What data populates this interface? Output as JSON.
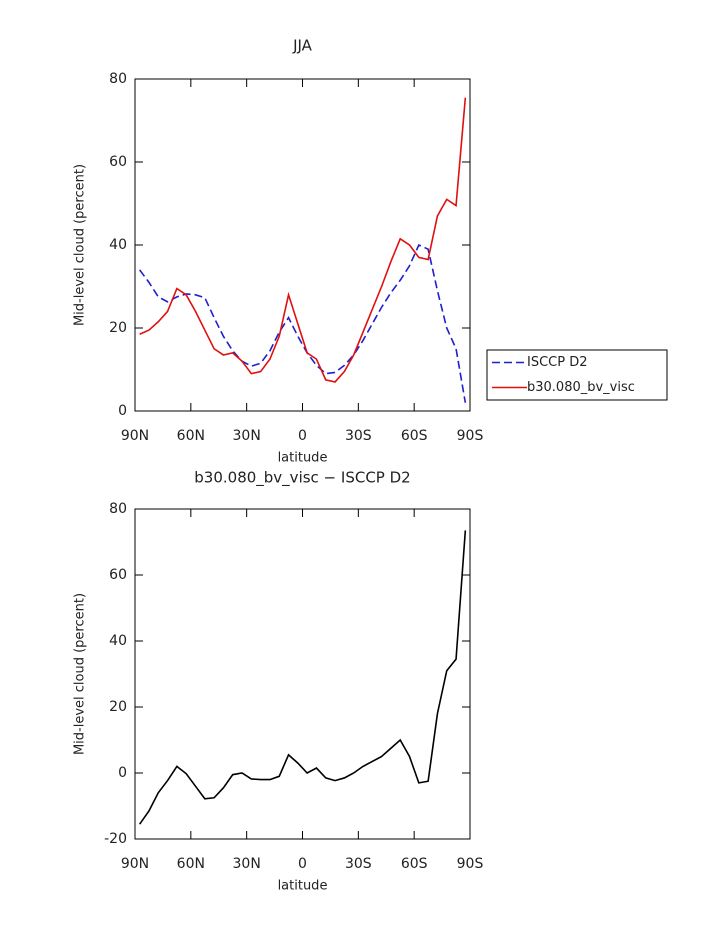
{
  "chart_data": [
    {
      "type": "line",
      "title": "JJA",
      "x_label": "latitude",
      "y_label": "Mid-level cloud (percent)",
      "x": [
        87.5,
        82.5,
        77.5,
        72.5,
        67.5,
        62.5,
        57.5,
        52.5,
        47.5,
        42.5,
        37.5,
        32.5,
        27.5,
        22.5,
        17.5,
        12.5,
        7.5,
        2.5,
        -2.5,
        -7.5,
        -12.5,
        -17.5,
        -22.5,
        -27.5,
        -32.5,
        -37.5,
        -42.5,
        -47.5,
        -52.5,
        -57.5,
        -62.5,
        -67.5,
        -72.5,
        -77.5,
        -82.5,
        -87.5
      ],
      "series": [
        {
          "name": "ISCCP D2",
          "color": "#1f1fd0",
          "dashed": true,
          "values": [
            34,
            31,
            27.5,
            26.3,
            27.5,
            28.2,
            28,
            27.3,
            22.5,
            18,
            14.5,
            12,
            10.8,
            11.5,
            14.5,
            19,
            22.5,
            18,
            14,
            11,
            9,
            9.3,
            11,
            13.5,
            17,
            21,
            25,
            28.5,
            31.5,
            35,
            40,
            39,
            29,
            20,
            15,
            2
          ]
        },
        {
          "name": "b30.080_bv_visc",
          "color": "#e01010",
          "dashed": false,
          "values": [
            18.5,
            19.5,
            21.5,
            24,
            29.5,
            28,
            24,
            19.5,
            15,
            13.5,
            14,
            12,
            9,
            9.5,
            12.5,
            18,
            28,
            21,
            14,
            12.5,
            7.5,
            7,
            9.5,
            13.5,
            19,
            24.5,
            30,
            36,
            41.5,
            40,
            37,
            36.5,
            47,
            51,
            49.5,
            75.5
          ]
        }
      ],
      "xlim": [
        90,
        -90
      ],
      "xticks": [
        {
          "value": 90,
          "label": "90N"
        },
        {
          "value": 60,
          "label": "60N"
        },
        {
          "value": 30,
          "label": "30N"
        },
        0,
        {
          "value": -30,
          "label": "30S"
        },
        {
          "value": -60,
          "label": "60S"
        },
        {
          "value": -90,
          "label": "90S"
        }
      ],
      "ylim": [
        0,
        80
      ],
      "yticks": [
        0,
        20,
        40,
        60,
        80
      ],
      "legend": "outside-right"
    },
    {
      "type": "line",
      "title": "b30.080_bv_visc − ISCCP D2",
      "x_label": "latitude",
      "y_label": "Mid-level cloud (percent)",
      "x": [
        87.5,
        82.5,
        77.5,
        72.5,
        67.5,
        62.5,
        57.5,
        52.5,
        47.5,
        42.5,
        37.5,
        32.5,
        27.5,
        22.5,
        17.5,
        12.5,
        7.5,
        2.5,
        -2.5,
        -7.5,
        -12.5,
        -17.5,
        -22.5,
        -27.5,
        -32.5,
        -37.5,
        -42.5,
        -47.5,
        -52.5,
        -57.5,
        -62.5,
        -67.5,
        -72.5,
        -77.5,
        -82.5,
        -87.5
      ],
      "series": [
        {
          "color": "#000000",
          "dashed": false,
          "values": [
            -15.5,
            -11.5,
            -6,
            -2.3,
            2,
            -0.2,
            -4,
            -7.8,
            -7.5,
            -4.5,
            -0.5,
            0,
            -1.8,
            -2,
            -2,
            -1,
            5.5,
            3,
            0,
            1.5,
            -1.5,
            -2.3,
            -1.5,
            0,
            2,
            3.5,
            5,
            7.5,
            10,
            5,
            -3,
            -2.5,
            18,
            31,
            34.5,
            73.5
          ]
        }
      ],
      "xlim": [
        90,
        -90
      ],
      "xticks": [
        {
          "value": 90,
          "label": "90N"
        },
        {
          "value": 60,
          "label": "60N"
        },
        {
          "value": 30,
          "label": "30N"
        },
        0,
        {
          "value": -30,
          "label": "30S"
        },
        {
          "value": -60,
          "label": "60S"
        },
        {
          "value": -90,
          "label": "90S"
        }
      ],
      "ylim": [
        -20,
        80
      ],
      "yticks": [
        -20,
        0,
        20,
        40,
        60,
        80
      ]
    }
  ]
}
